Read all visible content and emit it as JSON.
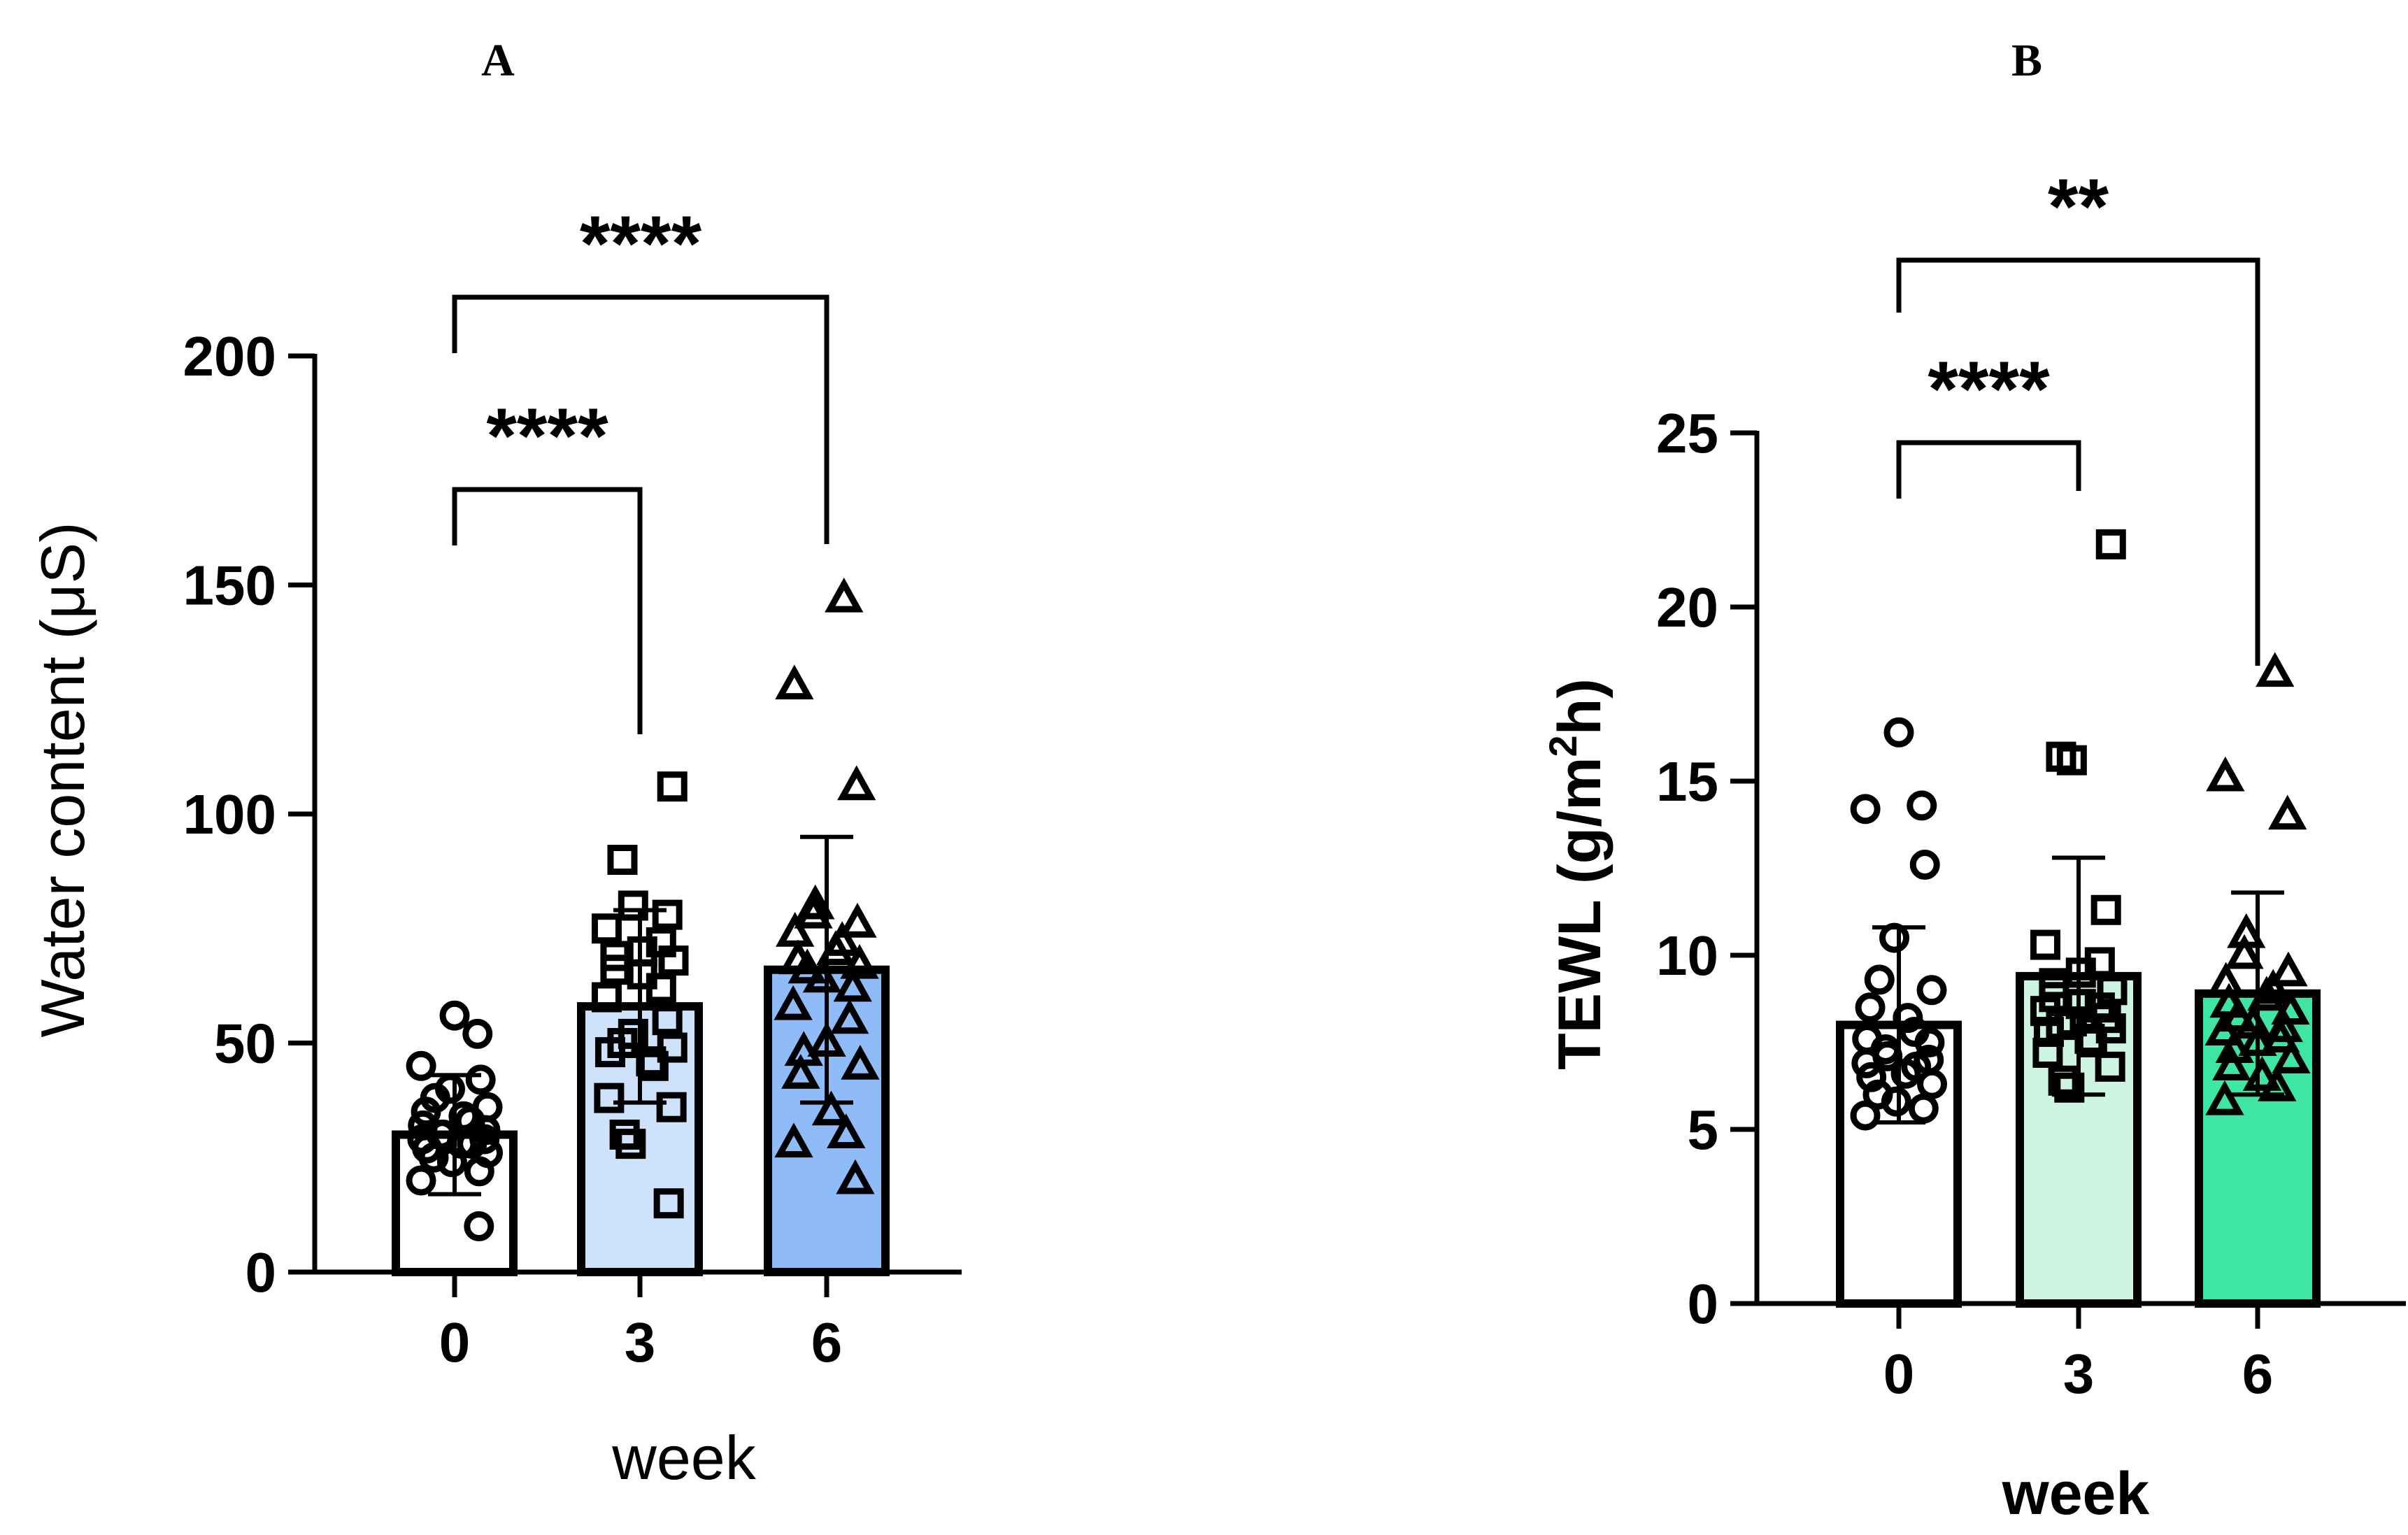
{
  "chart_data": [
    {
      "panel": "A",
      "type": "bar",
      "categories": [
        "0",
        "3",
        "6"
      ],
      "xlabel": "week",
      "ylabel": "Water content (μS)",
      "ylim": [
        0,
        200
      ],
      "yticks": [
        "0",
        "50",
        "100",
        "150",
        "200"
      ],
      "grid": false,
      "bar_colors": [
        "#ffffff",
        "#cfe2fb",
        "#8fbbf8"
      ],
      "marker_shapes": [
        "circle",
        "square",
        "triangle"
      ],
      "series": [
        {
          "values": [
            30,
            58,
            66
          ],
          "sd": [
            13,
            21,
            29
          ],
          "points": [
            [
              56,
              52,
              45,
              42,
              40,
              38,
              36,
              35,
              34,
              33,
              32,
              31,
              30,
              30,
              29,
              29,
              28,
              28,
              27,
              26,
              25,
              24,
              22,
              20,
              10
            ],
            [
              106,
              90,
              80,
              78,
              75,
              72,
              70,
              69,
              68,
              66,
              65,
              62,
              60,
              55,
              52,
              50,
              49,
              48,
              46,
              45,
              38,
              36,
              30,
              28,
              15
            ],
            [
              147,
              128,
              106,
              80,
              78,
              76,
              74,
              72,
              70,
              68,
              67,
              66,
              64,
              62,
              58,
              55,
              50,
              48,
              45,
              43,
              35,
              30,
              28,
              20
            ]
          ]
        }
      ],
      "significance": [
        {
          "from": 0,
          "to": 1,
          "label": "****"
        },
        {
          "from": 0,
          "to": 2,
          "label": "****"
        }
      ]
    },
    {
      "panel": "B",
      "type": "bar",
      "categories": [
        "0",
        "3",
        "6"
      ],
      "xlabel": "week",
      "ylabel": "TEWL (g/m2h)",
      "ylabel_parts": [
        "TEWL (g/m",
        "2",
        "h)"
      ],
      "ylim": [
        0,
        25
      ],
      "yticks": [
        "0",
        "5",
        "10",
        "15",
        "20",
        "25"
      ],
      "grid": false,
      "bar_colors": [
        "#ffffff",
        "#cdf5e1",
        "#3fe6a3"
      ],
      "marker_shapes": [
        "circle",
        "square",
        "triangle"
      ],
      "series": [
        {
          "values": [
            8.0,
            9.4,
            8.9
          ],
          "sd": [
            2.8,
            3.4,
            2.9
          ],
          "points": [
            [
              16.4,
              14.3,
              14.2,
              12.6,
              10.5,
              9.3,
              9.0,
              8.5,
              8.2,
              7.8,
              7.6,
              7.5,
              7.3,
              7.1,
              7.0,
              6.9,
              6.8,
              6.6,
              6.5,
              6.3,
              6.0,
              5.8,
              5.6,
              5.4
            ],
            [
              21.8,
              15.7,
              15.6,
              11.3,
              10.3,
              9.8,
              9.5,
              9.2,
              9.0,
              8.8,
              8.6,
              8.5,
              8.4,
              8.2,
              8.1,
              8.0,
              7.9,
              7.8,
              7.6,
              7.5,
              7.2,
              6.8,
              6.4,
              6.2
            ],
            [
              18.1,
              15.1,
              14.0,
              10.6,
              10.0,
              9.5,
              9.2,
              9.0,
              8.8,
              8.6,
              8.4,
              8.2,
              8.0,
              7.9,
              7.8,
              7.6,
              7.5,
              7.3,
              7.0,
              6.8,
              6.5,
              6.2,
              5.8
            ]
          ]
        }
      ],
      "significance": [
        {
          "from": 0,
          "to": 1,
          "label": "****"
        },
        {
          "from": 0,
          "to": 2,
          "label": "**"
        }
      ]
    }
  ]
}
